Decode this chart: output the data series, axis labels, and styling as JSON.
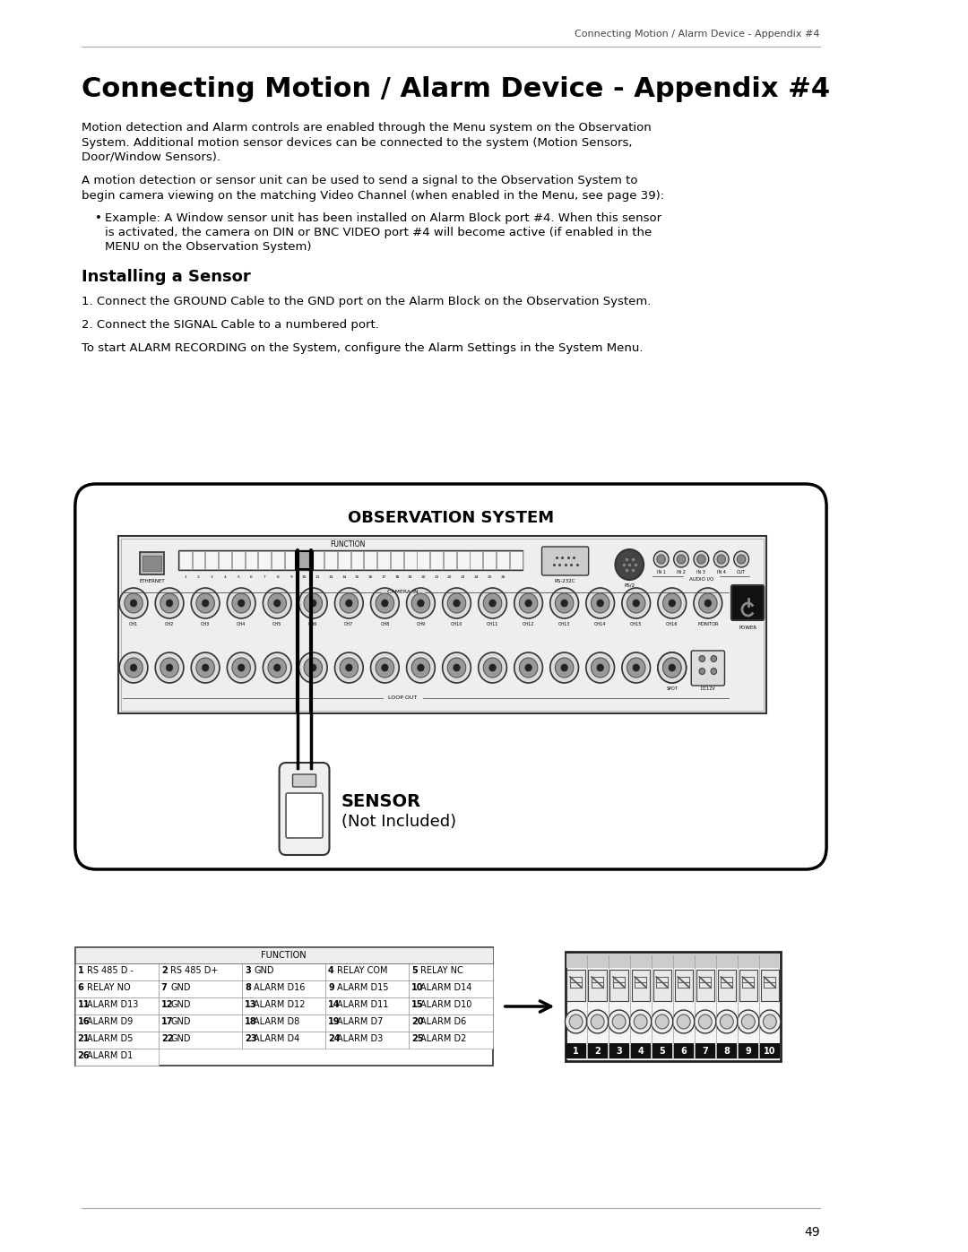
{
  "page_header": "Connecting Motion / Alarm Device - Appendix #4",
  "main_title": "Connecting Motion / Alarm Device - Appendix #4",
  "para1_lines": [
    "Motion detection and Alarm controls are enabled through the Menu system on the Observation",
    "System. Additional motion sensor devices can be connected to the system (Motion Sensors,",
    "Door/Window Sensors)."
  ],
  "para2_lines": [
    "A motion detection or sensor unit can be used to send a signal to the Observation System to",
    "begin camera viewing on the matching Video Channel (when enabled in the Menu, see page 39):"
  ],
  "bullet_lines": [
    "Example: A Window sensor unit has been installed on Alarm Block port #4. When this sensor",
    "is activated, the camera on DIN or BNC VIDEO port #4 will become active (if enabled in the",
    "MENU on the Observation System)"
  ],
  "sub_title": "Installing a Sensor",
  "step1": "1. Connect the GROUND Cable to the GND port on the Alarm Block on the Observation System.",
  "step2": "2. Connect the SIGNAL Cable to a numbered port.",
  "step3": "To start ALARM RECORDING on the System, configure the Alarm Settings in the System Menu.",
  "obs_system_label": "OBSERVATION SYSTEM",
  "sensor_label1": "SENSOR",
  "sensor_label2": "(Not Included)",
  "page_number": "49",
  "bg_color": "#ffffff",
  "text_color": "#000000",
  "table_rows": [
    [
      [
        1,
        "RS 485 D -"
      ],
      [
        2,
        "RS 485 D+"
      ],
      [
        3,
        "GND"
      ],
      [
        4,
        "RELAY COM"
      ],
      [
        5,
        "RELAY NC"
      ]
    ],
    [
      [
        6,
        "RELAY NO"
      ],
      [
        7,
        "GND"
      ],
      [
        8,
        "ALARM D16"
      ],
      [
        9,
        "ALARM D15"
      ],
      [
        10,
        "ALARM D14"
      ]
    ],
    [
      [
        11,
        "ALARM D13"
      ],
      [
        12,
        "GND"
      ],
      [
        13,
        "ALARM D12"
      ],
      [
        14,
        "ALARM D11"
      ],
      [
        15,
        "ALARM D10"
      ]
    ],
    [
      [
        16,
        "ALARM D9"
      ],
      [
        17,
        "GND"
      ],
      [
        18,
        "ALARM D8"
      ],
      [
        19,
        "ALARM D7"
      ],
      [
        20,
        "ALARM D6"
      ]
    ],
    [
      [
        21,
        "ALARM D5"
      ],
      [
        22,
        "GND"
      ],
      [
        23,
        "ALARM D4"
      ],
      [
        24,
        "ALARM D3"
      ],
      [
        25,
        "ALARM D2"
      ]
    ],
    [
      [
        26,
        "ALARM D1"
      ]
    ]
  ]
}
